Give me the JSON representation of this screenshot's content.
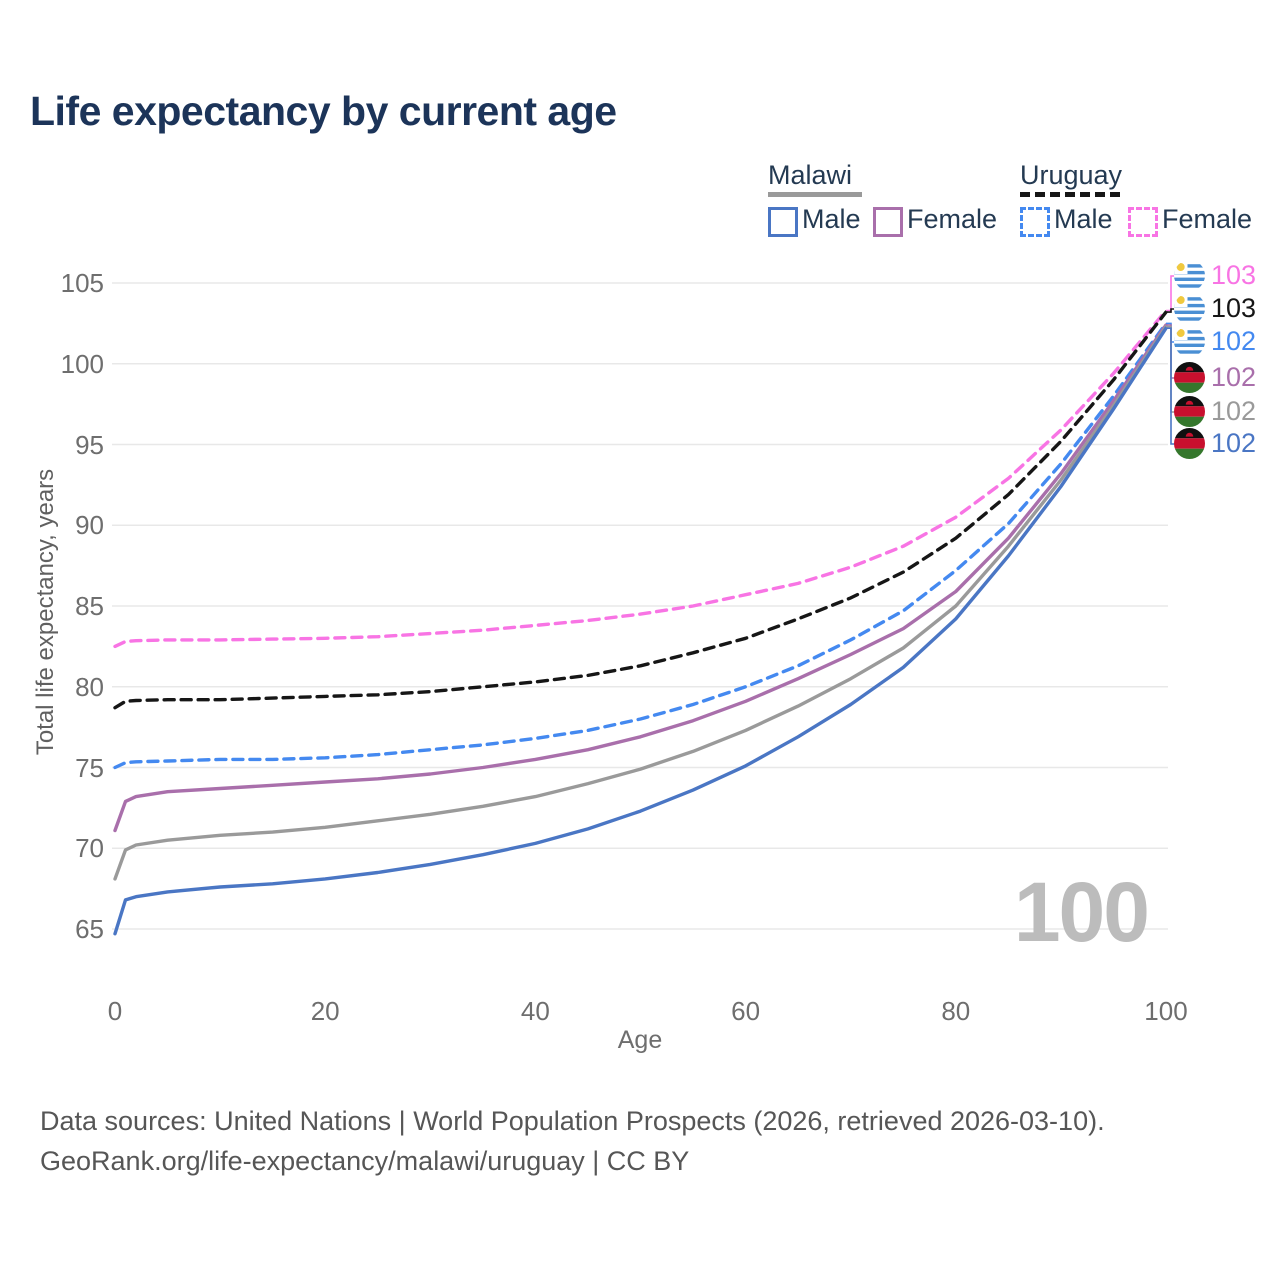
{
  "title": "Life expectancy by current age",
  "watermark": "100",
  "legend": {
    "groups": [
      {
        "name": "Malawi",
        "underline_style": "solid",
        "underline_color": "#9a9a9a",
        "items": [
          {
            "label": "Male",
            "color": "#4a76c4",
            "dashed": false
          },
          {
            "label": "Female",
            "color": "#a96fab",
            "dashed": false
          }
        ]
      },
      {
        "name": "Uruguay",
        "underline_style": "dashed",
        "underline_color": "#161616",
        "items": [
          {
            "label": "Male",
            "color": "#4489f0",
            "dashed": true
          },
          {
            "label": "Female",
            "color": "#f874e4",
            "dashed": true
          }
        ]
      }
    ]
  },
  "chart_data": {
    "type": "line",
    "title": "Life expectancy by current age",
    "xlabel": "Age",
    "ylabel": "Total life expectancy, years",
    "xlim": [
      0,
      100
    ],
    "ylim": [
      65,
      105
    ],
    "x_ticks": [
      0,
      20,
      40,
      60,
      80,
      100
    ],
    "y_ticks": [
      65,
      70,
      75,
      80,
      85,
      90,
      95,
      100,
      105
    ],
    "grid": "horizontal",
    "legend_position": "top-right",
    "x": [
      0,
      1,
      2,
      5,
      10,
      15,
      20,
      25,
      30,
      35,
      40,
      45,
      50,
      55,
      60,
      65,
      70,
      75,
      80,
      85,
      90,
      95,
      100
    ],
    "series": [
      {
        "name": "Uruguay Female",
        "country": "uruguay",
        "sex": "female",
        "color": "#f874e4",
        "dashed": true,
        "end_label": "103",
        "values": [
          82.5,
          82.8,
          82.85,
          82.9,
          82.9,
          82.95,
          83.0,
          83.1,
          83.3,
          83.5,
          83.8,
          84.1,
          84.5,
          85.0,
          85.7,
          86.4,
          87.4,
          88.7,
          90.5,
          92.9,
          95.9,
          99.4,
          103.3
        ]
      },
      {
        "name": "Uruguay",
        "country": "uruguay",
        "sex": "all",
        "color": "#161616",
        "dashed": true,
        "end_label": "103",
        "values": [
          78.7,
          79.1,
          79.15,
          79.2,
          79.2,
          79.3,
          79.4,
          79.5,
          79.7,
          80.0,
          80.3,
          80.7,
          81.3,
          82.1,
          83.0,
          84.2,
          85.5,
          87.1,
          89.2,
          91.9,
          95.2,
          99.0,
          103.2
        ]
      },
      {
        "name": "Uruguay Male",
        "country": "uruguay",
        "sex": "male",
        "color": "#4489f0",
        "dashed": true,
        "end_label": "102",
        "values": [
          75.0,
          75.3,
          75.35,
          75.4,
          75.5,
          75.5,
          75.6,
          75.8,
          76.1,
          76.4,
          76.8,
          77.3,
          78.0,
          78.9,
          80.0,
          81.3,
          82.9,
          84.7,
          87.2,
          90.1,
          93.8,
          98.0,
          102.5
        ]
      },
      {
        "name": "Malawi Female",
        "country": "malawi",
        "sex": "female",
        "color": "#a96fab",
        "dashed": false,
        "end_label": "102",
        "values": [
          71.1,
          72.9,
          73.2,
          73.5,
          73.7,
          73.9,
          74.1,
          74.3,
          74.6,
          75.0,
          75.5,
          76.1,
          76.9,
          77.9,
          79.1,
          80.5,
          82.0,
          83.6,
          85.9,
          89.2,
          93.2,
          97.7,
          102.4
        ]
      },
      {
        "name": "Malawi",
        "country": "malawi",
        "sex": "all",
        "color": "#9a9a9a",
        "dashed": false,
        "end_label": "102",
        "values": [
          68.1,
          69.9,
          70.2,
          70.5,
          70.8,
          71.0,
          71.3,
          71.7,
          72.1,
          72.6,
          73.2,
          74.0,
          74.9,
          76.0,
          77.3,
          78.8,
          80.5,
          82.4,
          85.0,
          88.7,
          92.8,
          97.4,
          102.3
        ]
      },
      {
        "name": "Malawi Male",
        "country": "malawi",
        "sex": "male",
        "color": "#4a76c4",
        "dashed": false,
        "end_label": "102",
        "values": [
          64.7,
          66.8,
          67.0,
          67.3,
          67.6,
          67.8,
          68.1,
          68.5,
          69.0,
          69.6,
          70.3,
          71.2,
          72.3,
          73.6,
          75.1,
          76.9,
          78.9,
          81.2,
          84.2,
          88.1,
          92.4,
          97.2,
          102.2
        ]
      }
    ]
  },
  "colors": {
    "title": "#1c3459",
    "tick": "#6e6e6e",
    "grid": "#e8e8e8",
    "footer": "#565656",
    "watermark": "#bcbcbc",
    "uruguay_flag_blue": "#4a8fd4",
    "uruguay_flag_sun": "#f0c93f",
    "malawi_flag_black": "#101010",
    "malawi_flag_red": "#c8102e",
    "malawi_flag_green": "#35772c"
  },
  "footer": {
    "line1": "Data sources: United Nations | World Population Prospects (2026, retrieved 2026-03-10).",
    "line2": "GeoRank.org/life-expectancy/malawi/uruguay | CC BY"
  }
}
